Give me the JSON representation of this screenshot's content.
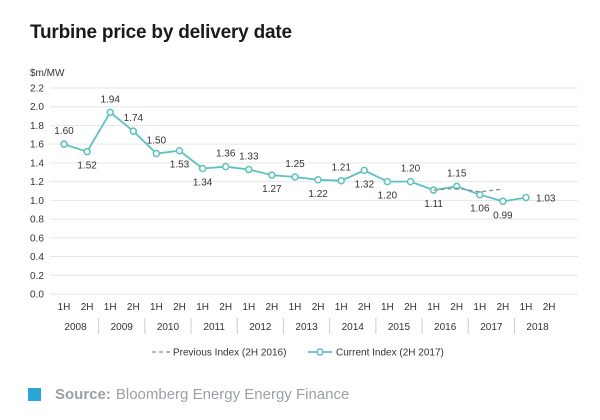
{
  "chart_data": {
    "type": "line",
    "title": "Turbine price by delivery date",
    "ylabel": "$m/MW",
    "ylim": [
      0,
      2.2
    ],
    "yticks": [
      0.0,
      0.2,
      0.4,
      0.6,
      0.8,
      1.0,
      1.2,
      1.4,
      1.6,
      1.8,
      2.0,
      2.2
    ],
    "ytick_labels": [
      "0.0",
      "0.2",
      "0.4",
      "0.6",
      "0.8",
      "1.0",
      "1.2",
      "1.4",
      "1.6",
      "1.8",
      "2.0",
      "2.2"
    ],
    "half_labels": [
      "1H",
      "2H",
      "1H",
      "2H",
      "1H",
      "2H",
      "1H",
      "2H",
      "1H",
      "2H",
      "1H",
      "2H",
      "1H",
      "2H",
      "1H",
      "2H",
      "1H",
      "2H",
      "1H",
      "2H",
      "1H",
      "2H"
    ],
    "years": [
      "2008",
      "2009",
      "2010",
      "2011",
      "2012",
      "2013",
      "2014",
      "2015",
      "2016",
      "2017",
      "2018"
    ],
    "grid": true,
    "legend_position": "bottom-center",
    "series": [
      {
        "name": "Current Index (2H 2017)",
        "color": "#5bc2bd",
        "style": "solid",
        "markers": true,
        "values": [
          1.6,
          1.52,
          1.94,
          1.74,
          1.5,
          1.53,
          1.34,
          1.36,
          1.33,
          1.27,
          1.25,
          1.22,
          1.21,
          1.32,
          1.2,
          1.2,
          1.11,
          1.15,
          1.06,
          0.99,
          1.03,
          null
        ]
      },
      {
        "name": "Previous Index (2H 2016)",
        "color": "#8a8f94",
        "style": "dashed",
        "markers": false,
        "values": [
          null,
          null,
          null,
          null,
          null,
          null,
          null,
          null,
          null,
          null,
          null,
          null,
          null,
          null,
          null,
          null,
          1.11,
          1.13,
          1.09,
          1.12,
          null,
          null
        ]
      }
    ],
    "data_labels": [
      {
        "index": 0,
        "text": "1.60",
        "pos": "above"
      },
      {
        "index": 1,
        "text": "1.52",
        "pos": "below"
      },
      {
        "index": 2,
        "text": "1.94",
        "pos": "above"
      },
      {
        "index": 3,
        "text": "1.74",
        "pos": "above"
      },
      {
        "index": 4,
        "text": "1.50",
        "pos": "above"
      },
      {
        "index": 5,
        "text": "1.53",
        "pos": "below"
      },
      {
        "index": 6,
        "text": "1.34",
        "pos": "below"
      },
      {
        "index": 7,
        "text": "1.36",
        "pos": "above"
      },
      {
        "index": 8,
        "text": "1.33",
        "pos": "above"
      },
      {
        "index": 9,
        "text": "1.27",
        "pos": "below"
      },
      {
        "index": 10,
        "text": "1.25",
        "pos": "above"
      },
      {
        "index": 11,
        "text": "1.22",
        "pos": "below"
      },
      {
        "index": 12,
        "text": "1.21",
        "pos": "above"
      },
      {
        "index": 13,
        "text": "1.32",
        "pos": "below"
      },
      {
        "index": 14,
        "text": "1.20",
        "pos": "below"
      },
      {
        "index": 15,
        "text": "1.20",
        "pos": "above"
      },
      {
        "index": 16,
        "text": "1.11",
        "pos": "below"
      },
      {
        "index": 17,
        "text": "1.15",
        "pos": "above"
      },
      {
        "index": 18,
        "text": "1.06",
        "pos": "below"
      },
      {
        "index": 19,
        "text": "0.99",
        "pos": "below"
      },
      {
        "index": 20,
        "text": "1.03",
        "pos": "right"
      }
    ]
  },
  "footer": {
    "source_label": "Source:",
    "source_text": "Bloomberg Energy Energy Finance",
    "accent_color": "#2aa7d8"
  }
}
